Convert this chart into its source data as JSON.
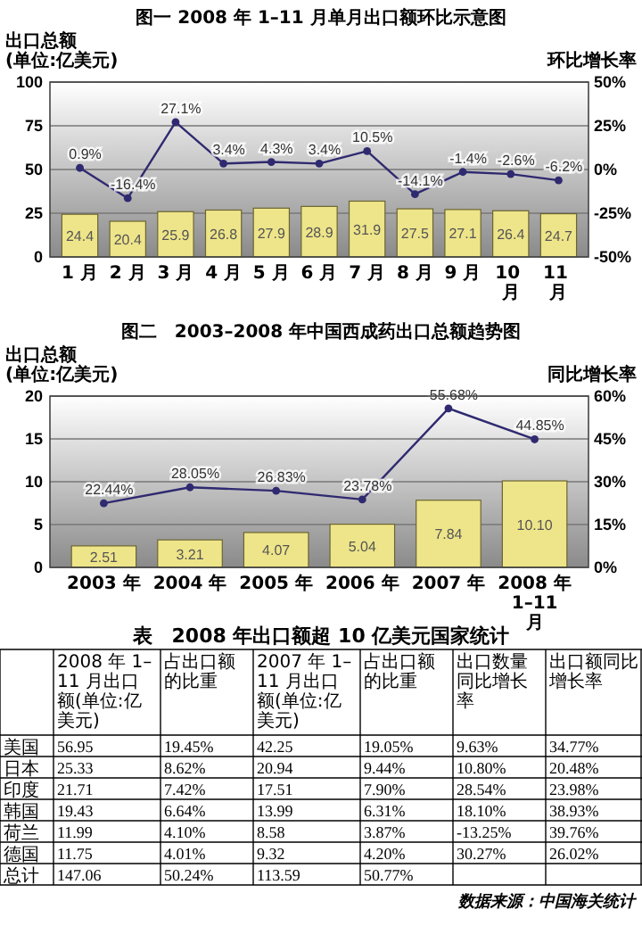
{
  "chart_data": [
    {
      "type": "bar",
      "title": "图一 2008 年 1–11 月单月出口额环比示意图",
      "ylabel": "出口总额\n(单位:亿美元)",
      "y2label": "环比增长率",
      "categories": [
        "1 月",
        "2 月",
        "3 月",
        "4 月",
        "5 月",
        "6 月",
        "7 月",
        "8 月",
        "9 月",
        "10 月",
        "11 月"
      ],
      "series": [
        {
          "type": "bar",
          "color": "#eee58a",
          "values": [
            24.4,
            20.4,
            25.9,
            26.8,
            27.9,
            28.9,
            31.9,
            27.5,
            27.1,
            26.4,
            24.7
          ],
          "value_labels": [
            "24.4",
            "20.4",
            "25.9",
            "26.8",
            "27.9",
            "28.9",
            "31.9",
            "27.5",
            "27.1",
            "26.4",
            "24.7"
          ]
        },
        {
          "type": "line",
          "axis": "y2",
          "color": "#2f2a70",
          "values": [
            0.9,
            -16.4,
            27.1,
            3.4,
            4.3,
            3.4,
            10.5,
            -14.1,
            -1.4,
            -2.6,
            -6.2
          ],
          "value_labels": [
            "0.9%",
            "-16.4%",
            "27.1%",
            "3.4%",
            "4.3%",
            "3.4%",
            "10.5%",
            "-14.1%",
            "-1.4%",
            "-2.6%",
            "-6.2%"
          ]
        }
      ],
      "ylim": [
        0,
        100
      ],
      "yticks": [
        0,
        25,
        50,
        75,
        100
      ],
      "y2lim": [
        -50,
        50
      ],
      "y2ticks": [
        {
          "value": -50,
          "label": "-50%"
        },
        {
          "value": -25,
          "label": "-25%"
        },
        {
          "value": 0,
          "label": "0%"
        },
        {
          "value": 25,
          "label": "25%"
        },
        {
          "value": 50,
          "label": "50%"
        }
      ],
      "grid": "y",
      "marker": "circle",
      "line_style": "solid"
    },
    {
      "type": "bar",
      "title": "图二　2003–2008 年中国西成药出口总额趋势图",
      "ylabel": "出口总额\n(单位:亿美元)",
      "y2label": "同比增长率",
      "categories": [
        "2003 年",
        "2004 年",
        "2005 年",
        "2006 年",
        "2007 年",
        "2008 年 1–11 月"
      ],
      "series": [
        {
          "type": "bar",
          "color": "#eee58a",
          "values": [
            2.51,
            3.21,
            4.07,
            5.04,
            7.84,
            10.1
          ],
          "value_labels": [
            "2.51",
            "3.21",
            "4.07",
            "5.04",
            "7.84",
            "10.10"
          ]
        },
        {
          "type": "line",
          "axis": "y2",
          "color": "#2f2a70",
          "values": [
            22.44,
            28.05,
            26.83,
            23.78,
            55.68,
            44.85
          ],
          "value_labels": [
            "22.44%",
            "28.05%",
            "26.83%",
            "23.78%",
            "55.68%",
            "44.85%"
          ]
        }
      ],
      "ylim": [
        0,
        20
      ],
      "yticks": [
        0,
        5,
        10,
        15,
        20
      ],
      "y2lim": [
        0,
        60
      ],
      "y2ticks": [
        {
          "value": 0,
          "label": "0%"
        },
        {
          "value": 15,
          "label": "15%"
        },
        {
          "value": 30,
          "label": "30%"
        },
        {
          "value": 45,
          "label": "45%"
        },
        {
          "value": 60,
          "label": "60%"
        }
      ],
      "grid": "y",
      "marker": "circle",
      "line_style": "solid"
    },
    {
      "type": "other",
      "title": "表　2008 年出口额超 10 亿美元国家统计",
      "categories": [
        "美国",
        "日本",
        "印度",
        "韩国",
        "荷兰",
        "德国",
        "总计"
      ],
      "series": [
        {
          "name": "2008 年 1–11 月出口额(单位:亿美元)",
          "values": [
            56.95,
            25.33,
            21.71,
            19.43,
            11.99,
            11.75,
            147.06
          ],
          "value_labels": [
            "56.95",
            "25.33",
            "21.71",
            "19.43",
            "11.99",
            "11.75",
            "147.06"
          ]
        },
        {
          "name": "占出口额的比重",
          "values": [
            19.45,
            8.62,
            7.42,
            6.64,
            4.1,
            4.01,
            50.24
          ],
          "value_labels": [
            "19.45%",
            "8.62%",
            "7.42%",
            "6.64%",
            "4.10%",
            "4.01%",
            "50.24%"
          ]
        },
        {
          "name": "2007 年 1–11 月出口额(单位:亿美元)",
          "values": [
            42.25,
            20.94,
            17.51,
            13.99,
            8.58,
            9.32,
            113.59
          ],
          "value_labels": [
            "42.25",
            "20.94",
            "17.51",
            "13.99",
            "8.58",
            "9.32",
            "113.59"
          ]
        },
        {
          "name": "占出口额的比重",
          "values": [
            19.05,
            9.44,
            7.9,
            6.31,
            3.87,
            4.2,
            50.77
          ],
          "value_labels": [
            "19.05%",
            "9.44%",
            "7.90%",
            "6.31%",
            "3.87%",
            "4.20%",
            "50.77%"
          ]
        },
        {
          "name": "出口数量同比增长率",
          "values": [
            9.63,
            10.8,
            28.54,
            18.1,
            -13.25,
            30.27,
            null
          ],
          "value_labels": [
            "9.63%",
            "10.80%",
            "28.54%",
            "18.10%",
            "-13.25%",
            "30.27%",
            null
          ]
        },
        {
          "name": "出口额同比增长率",
          "values": [
            34.77,
            20.48,
            23.98,
            38.93,
            39.76,
            26.02,
            null
          ],
          "value_labels": [
            "34.77%",
            "20.48%",
            "23.98%",
            "38.93%",
            "39.76%",
            "26.02%",
            null
          ]
        }
      ],
      "annotations": [
        "数据来源：中国海关统计"
      ]
    }
  ]
}
